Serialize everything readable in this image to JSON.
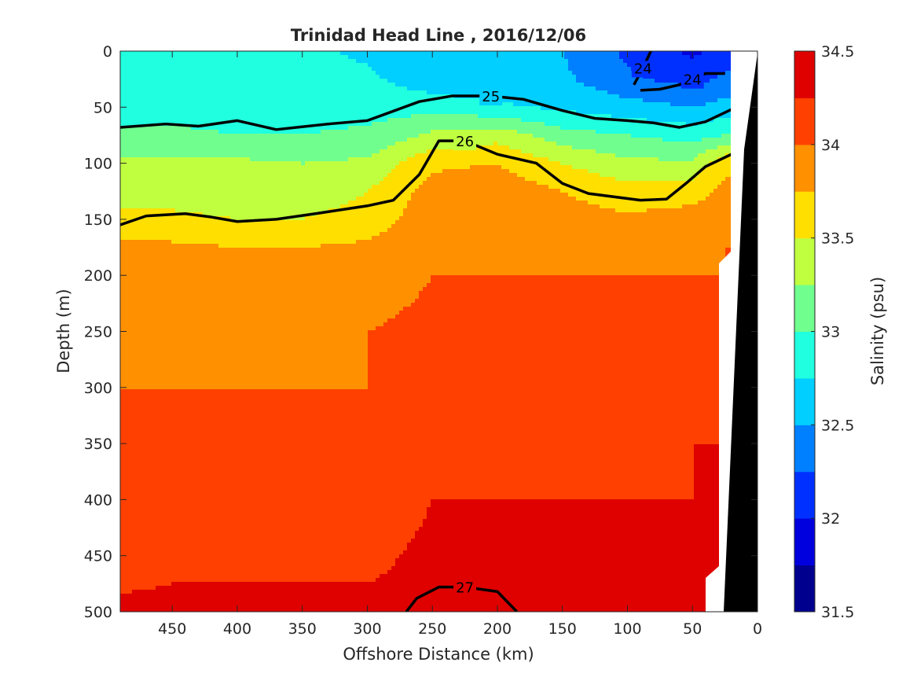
{
  "chart_data": {
    "type": "heatmap",
    "title": "Trinidad Head Line , 2016/12/06",
    "xlabel": "Offshore Distance (km)",
    "ylabel": "Depth (m)",
    "xlim": [
      490,
      0
    ],
    "ylim": [
      0,
      500
    ],
    "x_reversed": true,
    "y_reversed": true,
    "xticks": [
      450,
      400,
      350,
      300,
      250,
      200,
      150,
      100,
      50,
      0
    ],
    "yticks": [
      0,
      50,
      100,
      150,
      200,
      250,
      300,
      350,
      400,
      450,
      500
    ],
    "colorbar": {
      "label": "Salinity (psu)",
      "range": [
        31.5,
        34.5
      ],
      "step": 0.25,
      "ticks": [
        31.5,
        32,
        32.5,
        33,
        33.5,
        34,
        34.5
      ],
      "colors": [
        "#00008f",
        "#0000df",
        "#0030ff",
        "#0080ff",
        "#00cfff",
        "#20ffdf",
        "#70ff8f",
        "#bfff40",
        "#ffdf00",
        "#ff9000",
        "#ff4000",
        "#df0000",
        "#8f0000"
      ]
    },
    "salinity_fill": {
      "distance_km": [
        490,
        450,
        400,
        350,
        300,
        250,
        200,
        150,
        100,
        50,
        25
      ],
      "depth_m": [
        0,
        25,
        50,
        75,
        100,
        125,
        150,
        175,
        200,
        250,
        300,
        350,
        400,
        450,
        500
      ],
      "values": [
        [
          32.9,
          32.9,
          32.8,
          32.8,
          32.7,
          32.55,
          32.5,
          32.5,
          32.2,
          31.95,
          32.1
        ],
        [
          32.9,
          32.95,
          32.85,
          32.85,
          32.8,
          32.6,
          32.5,
          32.55,
          32.3,
          32.15,
          32.3
        ],
        [
          32.9,
          32.9,
          32.9,
          32.9,
          32.9,
          32.9,
          32.8,
          32.7,
          32.6,
          32.5,
          32.6
        ],
        [
          33.05,
          33.05,
          33.0,
          33.0,
          33.05,
          33.3,
          33.4,
          33.1,
          33.0,
          32.9,
          33.0
        ],
        [
          33.3,
          33.3,
          33.3,
          33.25,
          33.3,
          33.7,
          33.75,
          33.5,
          33.3,
          33.3,
          33.7
        ],
        [
          33.4,
          33.4,
          33.35,
          33.35,
          33.5,
          33.85,
          33.9,
          33.75,
          33.6,
          33.65,
          33.8
        ],
        [
          33.55,
          33.55,
          33.5,
          33.5,
          33.6,
          33.9,
          33.95,
          33.85,
          33.8,
          33.85,
          33.9
        ],
        [
          33.85,
          33.8,
          33.75,
          33.75,
          33.8,
          33.95,
          34.0,
          33.95,
          33.95,
          33.95,
          34.0
        ],
        [
          33.9,
          33.9,
          33.9,
          33.9,
          33.9,
          34.0,
          34.0,
          34.0,
          34.0,
          34.0,
          34.0
        ],
        [
          33.95,
          33.95,
          33.95,
          33.95,
          34.0,
          34.05,
          34.1,
          34.05,
          34.1,
          34.15,
          34.05
        ],
        [
          34.0,
          34.0,
          34.0,
          34.0,
          34.0,
          34.15,
          34.2,
          34.15,
          34.1,
          34.2,
          34.2
        ],
        [
          34.05,
          34.05,
          34.05,
          34.05,
          34.05,
          34.2,
          34.2,
          34.2,
          34.2,
          34.25,
          34.25
        ],
        [
          34.1,
          34.1,
          34.1,
          34.1,
          34.1,
          34.25,
          34.25,
          34.25,
          34.25,
          34.25,
          34.25
        ],
        [
          34.15,
          34.2,
          34.2,
          34.2,
          34.2,
          34.3,
          34.3,
          34.3,
          34.3,
          34.3,
          34.3
        ],
        [
          34.3,
          34.3,
          34.3,
          34.3,
          34.3,
          34.3,
          34.3,
          34.3,
          34.3,
          34.3,
          34.3
        ]
      ]
    },
    "density_contours": [
      {
        "label": "24",
        "bold": true,
        "points": [
          [
            90,
            35
          ],
          [
            75,
            34
          ],
          [
            60,
            30
          ],
          [
            50,
            25
          ],
          [
            40,
            20
          ],
          [
            25,
            20
          ]
        ]
      },
      {
        "label": "24",
        "bold": true,
        "points": [
          [
            95,
            30
          ],
          [
            88,
            15
          ],
          [
            82,
            0
          ]
        ]
      },
      {
        "label": "25",
        "bold": true,
        "points": [
          [
            490,
            68
          ],
          [
            455,
            65
          ],
          [
            430,
            67
          ],
          [
            400,
            62
          ],
          [
            370,
            70
          ],
          [
            330,
            65
          ],
          [
            300,
            62
          ],
          [
            260,
            45
          ],
          [
            235,
            40
          ],
          [
            205,
            40
          ],
          [
            180,
            43
          ],
          [
            150,
            53
          ],
          [
            125,
            60
          ],
          [
            100,
            62
          ],
          [
            80,
            64
          ],
          [
            60,
            68
          ],
          [
            40,
            63
          ],
          [
            20,
            52
          ]
        ]
      },
      {
        "label": "26",
        "bold": true,
        "points": [
          [
            490,
            155
          ],
          [
            470,
            147
          ],
          [
            440,
            145
          ],
          [
            420,
            148
          ],
          [
            400,
            152
          ],
          [
            370,
            150
          ],
          [
            340,
            145
          ],
          [
            300,
            138
          ],
          [
            280,
            133
          ],
          [
            260,
            110
          ],
          [
            245,
            80
          ],
          [
            225,
            80
          ],
          [
            200,
            92
          ],
          [
            170,
            100
          ],
          [
            150,
            118
          ],
          [
            130,
            127
          ],
          [
            110,
            130
          ],
          [
            90,
            133
          ],
          [
            70,
            132
          ],
          [
            55,
            118
          ],
          [
            40,
            103
          ],
          [
            20,
            92
          ]
        ]
      },
      {
        "label": "27",
        "bold": true,
        "points": [
          [
            270,
            500
          ],
          [
            262,
            488
          ],
          [
            245,
            478
          ],
          [
            225,
            478
          ],
          [
            200,
            482
          ],
          [
            185,
            500
          ]
        ]
      }
    ],
    "zero_depth_marker": "0",
    "seafloor_color": "#000000"
  }
}
